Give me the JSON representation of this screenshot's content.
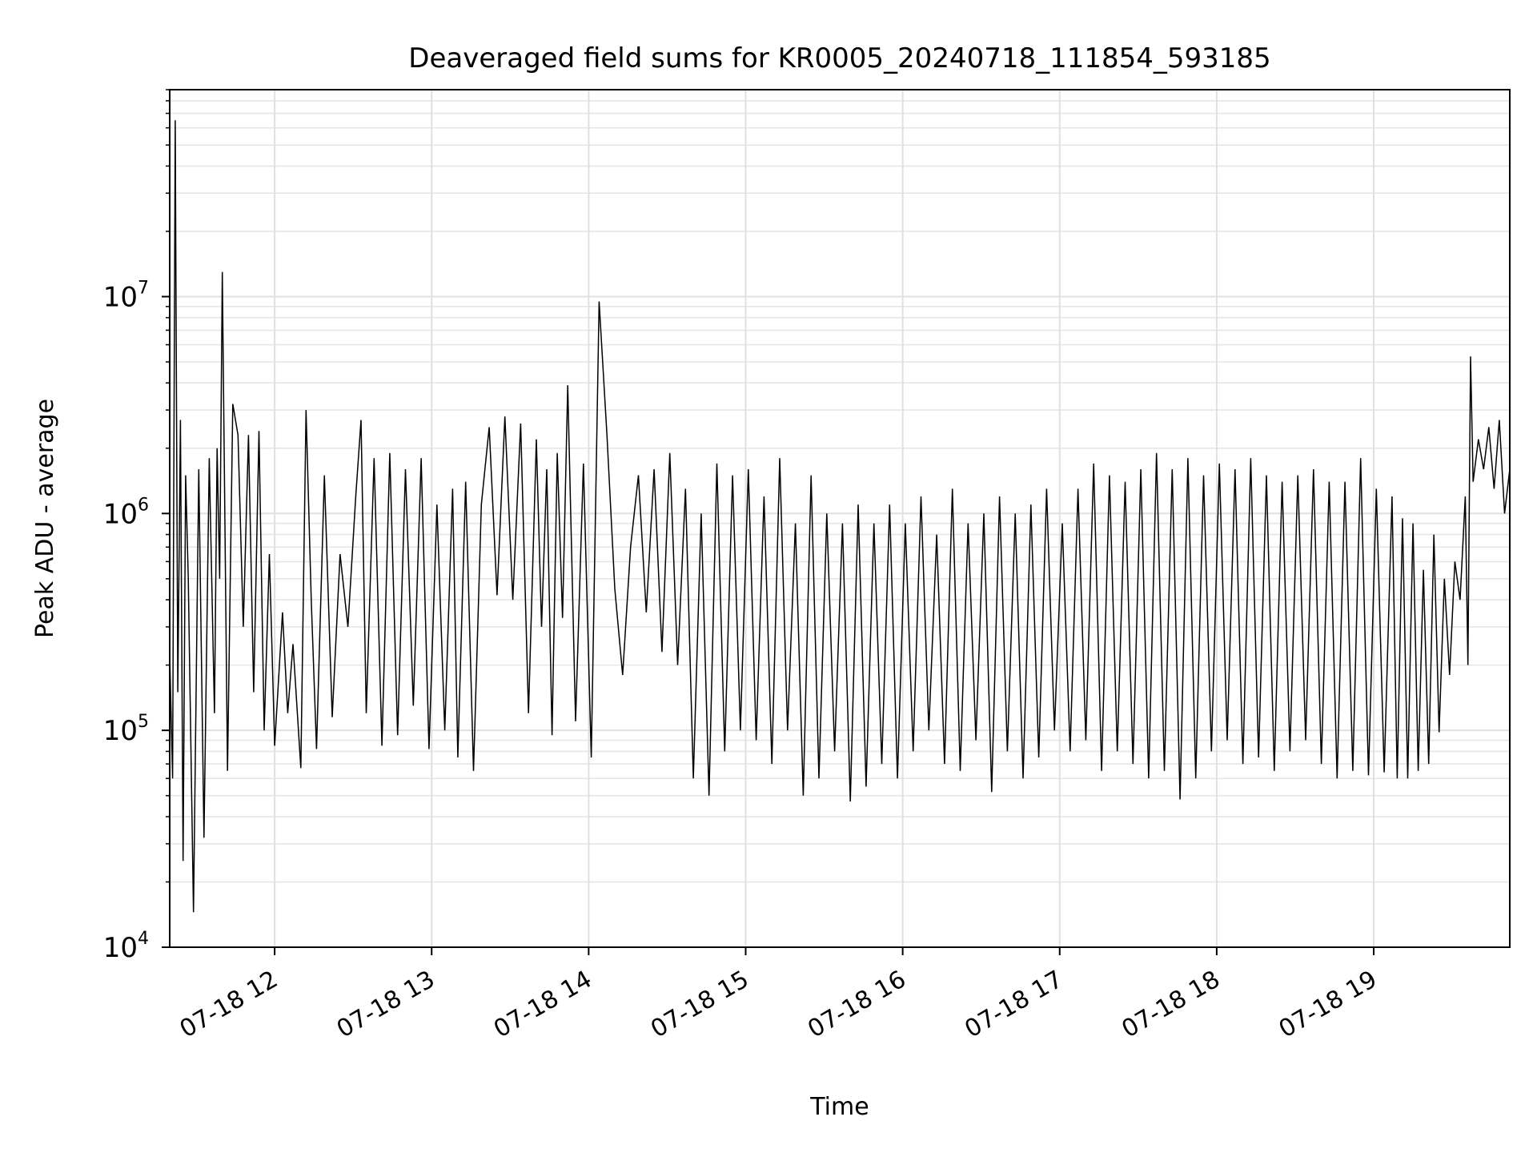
{
  "chart_data": {
    "type": "line",
    "title": "Deaveraged field sums for KR0005_20240718_111854_593185",
    "xlabel": "Time",
    "ylabel": "Peak ADU - average",
    "xlim": [
      "2024-07-18T11:19:54",
      "2024-07-18T19:52:00"
    ],
    "ylim": [
      10000,
      90000000
    ],
    "yscale": "log",
    "grid": "major and minor",
    "legend": "none",
    "x_ticks": [
      {
        "value": "2024-07-18T12:00:00",
        "label": "07-18 12"
      },
      {
        "value": "2024-07-18T13:00:00",
        "label": "07-18 13"
      },
      {
        "value": "2024-07-18T14:00:00",
        "label": "07-18 14"
      },
      {
        "value": "2024-07-18T15:00:00",
        "label": "07-18 15"
      },
      {
        "value": "2024-07-18T16:00:00",
        "label": "07-18 16"
      },
      {
        "value": "2024-07-18T17:00:00",
        "label": "07-18 17"
      },
      {
        "value": "2024-07-18T18:00:00",
        "label": "07-18 18"
      },
      {
        "value": "2024-07-18T19:00:00",
        "label": "07-18 19"
      }
    ],
    "y_ticks": [
      {
        "value": 10000,
        "base": "10",
        "exp": "4"
      },
      {
        "value": 100000,
        "base": "10",
        "exp": "5"
      },
      {
        "value": 1000000,
        "base": "10",
        "exp": "6"
      },
      {
        "value": 10000000,
        "base": "10",
        "exp": "7"
      }
    ],
    "series": [
      {
        "color": "#000000",
        "x": [
          "2024-07-18T11:20:00",
          "2024-07-18T11:21:00",
          "2024-07-18T11:22:00",
          "2024-07-18T11:23:00",
          "2024-07-18T11:24:00",
          "2024-07-18T11:25:00",
          "2024-07-18T11:26:00",
          "2024-07-18T11:27:00",
          "2024-07-18T11:29:00",
          "2024-07-18T11:31:00",
          "2024-07-18T11:33:00",
          "2024-07-18T11:35:00",
          "2024-07-18T11:37:00",
          "2024-07-18T11:38:00",
          "2024-07-18T11:39:00",
          "2024-07-18T11:40:00",
          "2024-07-18T11:42:00",
          "2024-07-18T11:44:00",
          "2024-07-18T11:46:00",
          "2024-07-18T11:48:00",
          "2024-07-18T11:50:00",
          "2024-07-18T11:52:00",
          "2024-07-18T11:54:00",
          "2024-07-18T11:56:00",
          "2024-07-18T11:58:00",
          "2024-07-18T12:00:00",
          "2024-07-18T12:03:00",
          "2024-07-18T12:05:00",
          "2024-07-18T12:07:00",
          "2024-07-18T12:10:00",
          "2024-07-18T12:12:00",
          "2024-07-18T12:14:00",
          "2024-07-18T12:16:00",
          "2024-07-18T12:19:00",
          "2024-07-18T12:22:00",
          "2024-07-18T12:25:00",
          "2024-07-18T12:28:00",
          "2024-07-18T12:31:00",
          "2024-07-18T12:33:00",
          "2024-07-18T12:35:00",
          "2024-07-18T12:38:00",
          "2024-07-18T12:41:00",
          "2024-07-18T12:44:00",
          "2024-07-18T12:47:00",
          "2024-07-18T12:50:00",
          "2024-07-18T12:53:00",
          "2024-07-18T12:56:00",
          "2024-07-18T12:59:00",
          "2024-07-18T13:02:00",
          "2024-07-18T13:05:00",
          "2024-07-18T13:08:00",
          "2024-07-18T13:10:00",
          "2024-07-18T13:13:00",
          "2024-07-18T13:16:00",
          "2024-07-18T13:19:00",
          "2024-07-18T13:22:00",
          "2024-07-18T13:25:00",
          "2024-07-18T13:28:00",
          "2024-07-18T13:31:00",
          "2024-07-18T13:34:00",
          "2024-07-18T13:37:00",
          "2024-07-18T13:40:00",
          "2024-07-18T13:42:00",
          "2024-07-18T13:44:00",
          "2024-07-18T13:46:00",
          "2024-07-18T13:48:00",
          "2024-07-18T13:50:00",
          "2024-07-18T13:52:00",
          "2024-07-18T13:55:00",
          "2024-07-18T13:58:00",
          "2024-07-18T14:01:00",
          "2024-07-18T14:04:00",
          "2024-07-18T14:07:00",
          "2024-07-18T14:10:00",
          "2024-07-18T14:13:00",
          "2024-07-18T14:16:00",
          "2024-07-18T14:19:00",
          "2024-07-18T14:22:00",
          "2024-07-18T14:25:00",
          "2024-07-18T14:28:00",
          "2024-07-18T14:31:00",
          "2024-07-18T14:34:00",
          "2024-07-18T14:37:00",
          "2024-07-18T14:40:00",
          "2024-07-18T14:43:00",
          "2024-07-18T14:46:00",
          "2024-07-18T14:49:00",
          "2024-07-18T14:52:00",
          "2024-07-18T14:55:00",
          "2024-07-18T14:58:00",
          "2024-07-18T15:01:00",
          "2024-07-18T15:04:00",
          "2024-07-18T15:07:00",
          "2024-07-18T15:10:00",
          "2024-07-18T15:13:00",
          "2024-07-18T15:16:00",
          "2024-07-18T15:19:00",
          "2024-07-18T15:22:00",
          "2024-07-18T15:25:00",
          "2024-07-18T15:28:00",
          "2024-07-18T15:31:00",
          "2024-07-18T15:34:00",
          "2024-07-18T15:37:00",
          "2024-07-18T15:40:00",
          "2024-07-18T15:43:00",
          "2024-07-18T15:46:00",
          "2024-07-18T15:49:00",
          "2024-07-18T15:52:00",
          "2024-07-18T15:55:00",
          "2024-07-18T15:58:00",
          "2024-07-18T16:01:00",
          "2024-07-18T16:04:00",
          "2024-07-18T16:07:00",
          "2024-07-18T16:10:00",
          "2024-07-18T16:13:00",
          "2024-07-18T16:16:00",
          "2024-07-18T16:19:00",
          "2024-07-18T16:22:00",
          "2024-07-18T16:25:00",
          "2024-07-18T16:28:00",
          "2024-07-18T16:31:00",
          "2024-07-18T16:34:00",
          "2024-07-18T16:37:00",
          "2024-07-18T16:40:00",
          "2024-07-18T16:43:00",
          "2024-07-18T16:46:00",
          "2024-07-18T16:49:00",
          "2024-07-18T16:52:00",
          "2024-07-18T16:55:00",
          "2024-07-18T16:58:00",
          "2024-07-18T17:01:00",
          "2024-07-18T17:04:00",
          "2024-07-18T17:07:00",
          "2024-07-18T17:10:00",
          "2024-07-18T17:13:00",
          "2024-07-18T17:16:00",
          "2024-07-18T17:19:00",
          "2024-07-18T17:22:00",
          "2024-07-18T17:25:00",
          "2024-07-18T17:28:00",
          "2024-07-18T17:31:00",
          "2024-07-18T17:34:00",
          "2024-07-18T17:37:00",
          "2024-07-18T17:40:00",
          "2024-07-18T17:43:00",
          "2024-07-18T17:46:00",
          "2024-07-18T17:49:00",
          "2024-07-18T17:52:00",
          "2024-07-18T17:55:00",
          "2024-07-18T17:58:00",
          "2024-07-18T18:01:00",
          "2024-07-18T18:04:00",
          "2024-07-18T18:07:00",
          "2024-07-18T18:10:00",
          "2024-07-18T18:13:00",
          "2024-07-18T18:16:00",
          "2024-07-18T18:19:00",
          "2024-07-18T18:22:00",
          "2024-07-18T18:25:00",
          "2024-07-18T18:28:00",
          "2024-07-18T18:31:00",
          "2024-07-18T18:34:00",
          "2024-07-18T18:37:00",
          "2024-07-18T18:40:00",
          "2024-07-18T18:43:00",
          "2024-07-18T18:46:00",
          "2024-07-18T18:49:00",
          "2024-07-18T18:52:00",
          "2024-07-18T18:55:00",
          "2024-07-18T18:58:00",
          "2024-07-18T19:01:00",
          "2024-07-18T19:04:00",
          "2024-07-18T19:07:00",
          "2024-07-18T19:09:00",
          "2024-07-18T19:11:00",
          "2024-07-18T19:13:00",
          "2024-07-18T19:15:00",
          "2024-07-18T19:17:00",
          "2024-07-18T19:19:00",
          "2024-07-18T19:21:00",
          "2024-07-18T19:23:00",
          "2024-07-18T19:25:00",
          "2024-07-18T19:27:00",
          "2024-07-18T19:29:00",
          "2024-07-18T19:31:00",
          "2024-07-18T19:33:00",
          "2024-07-18T19:35:00",
          "2024-07-18T19:36:00",
          "2024-07-18T19:37:00",
          "2024-07-18T19:38:00",
          "2024-07-18T19:40:00",
          "2024-07-18T19:42:00",
          "2024-07-18T19:44:00",
          "2024-07-18T19:46:00",
          "2024-07-18T19:48:00",
          "2024-07-18T19:50:00",
          "2024-07-18T19:52:00"
        ],
        "y": [
          200000,
          60000,
          65000000,
          150000,
          2700000,
          25000,
          1500000,
          500000,
          14500,
          1600000,
          32000,
          1800000,
          120000,
          2000000,
          500000,
          13000000,
          65000,
          3200000,
          2300000,
          300000,
          2300000,
          150000,
          2400000,
          100000,
          650000,
          85000,
          350000,
          120000,
          250000,
          67000,
          3000000,
          400000,
          82000,
          1500000,
          115000,
          650000,
          300000,
          1200000,
          2700000,
          120000,
          1800000,
          85000,
          1900000,
          95000,
          1600000,
          130000,
          1800000,
          82000,
          1100000,
          100000,
          1300000,
          75000,
          1400000,
          65000,
          1100000,
          2500000,
          420000,
          2800000,
          400000,
          2600000,
          120000,
          2200000,
          300000,
          1600000,
          95000,
          1900000,
          330000,
          3900000,
          110000,
          1700000,
          75000,
          9500000,
          2300000,
          450000,
          180000,
          700000,
          1500000,
          350000,
          1600000,
          230000,
          1900000,
          200000,
          1300000,
          60000,
          1000000,
          50000,
          1700000,
          80000,
          1500000,
          100000,
          1600000,
          90000,
          1200000,
          70000,
          1800000,
          100000,
          900000,
          50000,
          1500000,
          60000,
          1000000,
          80000,
          900000,
          47000,
          1100000,
          55000,
          900000,
          70000,
          1100000,
          60000,
          900000,
          80000,
          1200000,
          100000,
          800000,
          70000,
          1300000,
          65000,
          900000,
          90000,
          1000000,
          52000,
          1200000,
          80000,
          1000000,
          60000,
          1100000,
          75000,
          1300000,
          100000,
          900000,
          80000,
          1300000,
          90000,
          1700000,
          65000,
          1500000,
          80000,
          1400000,
          70000,
          1600000,
          60000,
          1900000,
          65000,
          1600000,
          48000,
          1800000,
          60000,
          1500000,
          80000,
          1700000,
          90000,
          1600000,
          70000,
          1800000,
          75000,
          1500000,
          65000,
          1400000,
          80000,
          1500000,
          90000,
          1600000,
          70000,
          1400000,
          60000,
          1400000,
          65000,
          1800000,
          62000,
          1300000,
          64000,
          1200000,
          60000,
          950000,
          60000,
          900000,
          65000,
          550000,
          70000,
          800000,
          98000,
          500000,
          180000,
          600000,
          400000,
          1200000,
          200000,
          5300000,
          1400000,
          2200000,
          1600000,
          2500000,
          1300000,
          2700000,
          1000000,
          1600000
        ]
      }
    ]
  }
}
